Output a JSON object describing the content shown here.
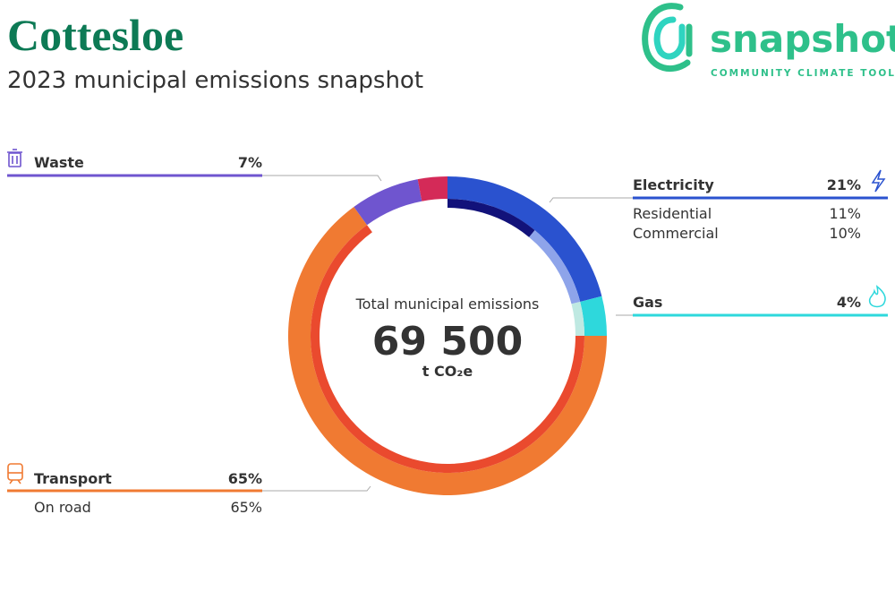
{
  "brand": {
    "name": "snapshot",
    "tagline": "COMMUNITY CLIMATE TOOL"
  },
  "chart_data": {
    "type": "donut",
    "title": "Cottesloe",
    "subtitle": "2023 municipal emissions snapshot",
    "center_label": "Total municipal emissions",
    "total": 69500,
    "total_label": "69 500",
    "unit": "t CO₂e",
    "categories": [
      "Electricity",
      "Gas",
      "Transport",
      "Waste",
      null
    ],
    "values": [
      21,
      4,
      65,
      7,
      3
    ],
    "value_labels": [
      "21%",
      "4%",
      "65%",
      "7%",
      null
    ],
    "colors": [
      "#2a52cf",
      "#2ed8dc",
      "#f07a32",
      "#6f55cf",
      "#d42a58"
    ],
    "inner": {
      "categories": [
        "Residential",
        "Commercial",
        null,
        "On road"
      ],
      "values": [
        11,
        10,
        4,
        65
      ],
      "value_labels": [
        "11%",
        "10%",
        null,
        "65%"
      ],
      "colors": [
        "#12127a",
        "#8ea4ea",
        "#bfe9e2",
        "#ea4a2e"
      ]
    }
  }
}
